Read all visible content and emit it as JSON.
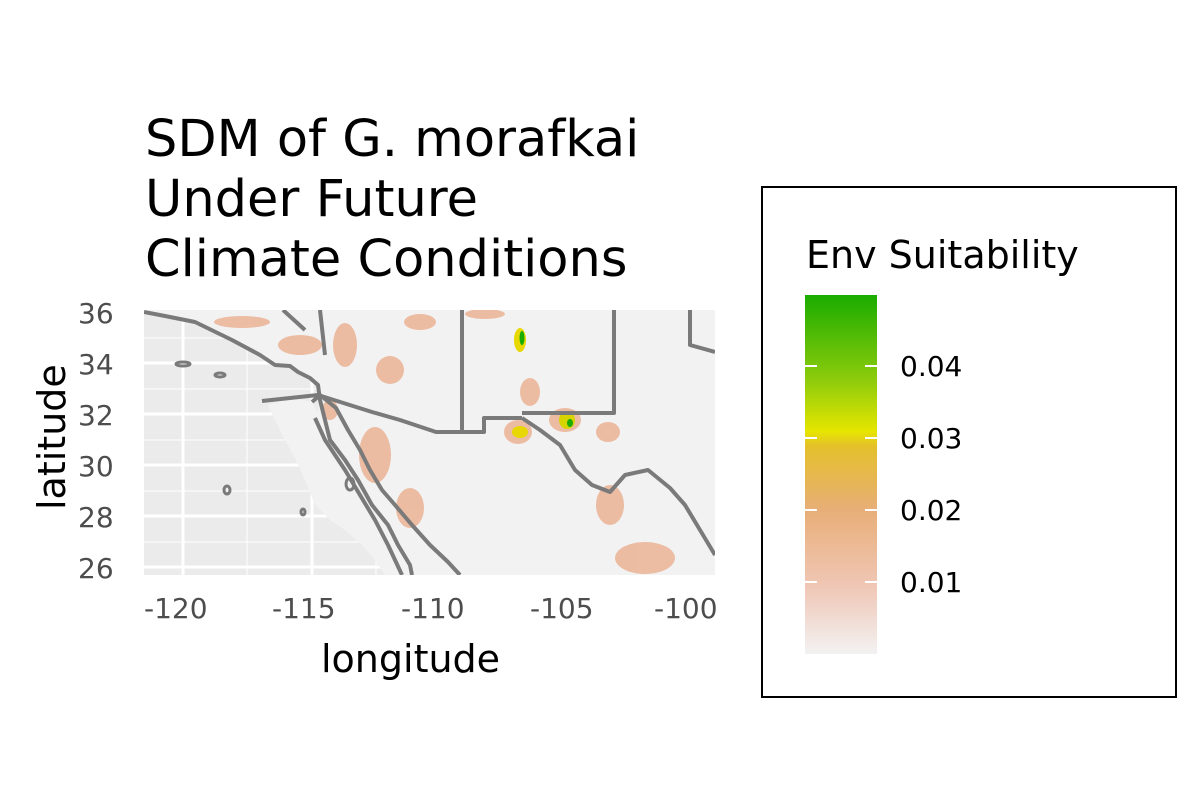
{
  "title": [
    "SDM of G. morafkai",
    "Under Future",
    "Climate Conditions"
  ],
  "axes": {
    "x_label": "longitude",
    "y_label": "latitude",
    "x_ticks": [
      "-120",
      "-115",
      "-110",
      "-105",
      "-100"
    ],
    "y_ticks": [
      "36",
      "34",
      "32",
      "30",
      "28",
      "26"
    ],
    "x_range": [
      -121.5,
      -99.3
    ],
    "y_range": [
      25.6,
      36.1
    ]
  },
  "legend": {
    "title": "Env Suitability",
    "labels": [
      "0.04",
      "0.03",
      "0.02",
      "0.01"
    ],
    "values": [
      0.04,
      0.03,
      0.02,
      0.01
    ],
    "range": [
      0.0,
      0.05
    ],
    "colors": [
      "#f2f2f2",
      "#f0c8b8",
      "#e8ae78",
      "#e6e600",
      "#1aac00"
    ]
  },
  "map": {
    "ocean_color": "#ebebeb",
    "land_color": "#f2f2f2",
    "border_color": "#7a7a7a",
    "high_suitability_color": "#1aac00"
  }
}
